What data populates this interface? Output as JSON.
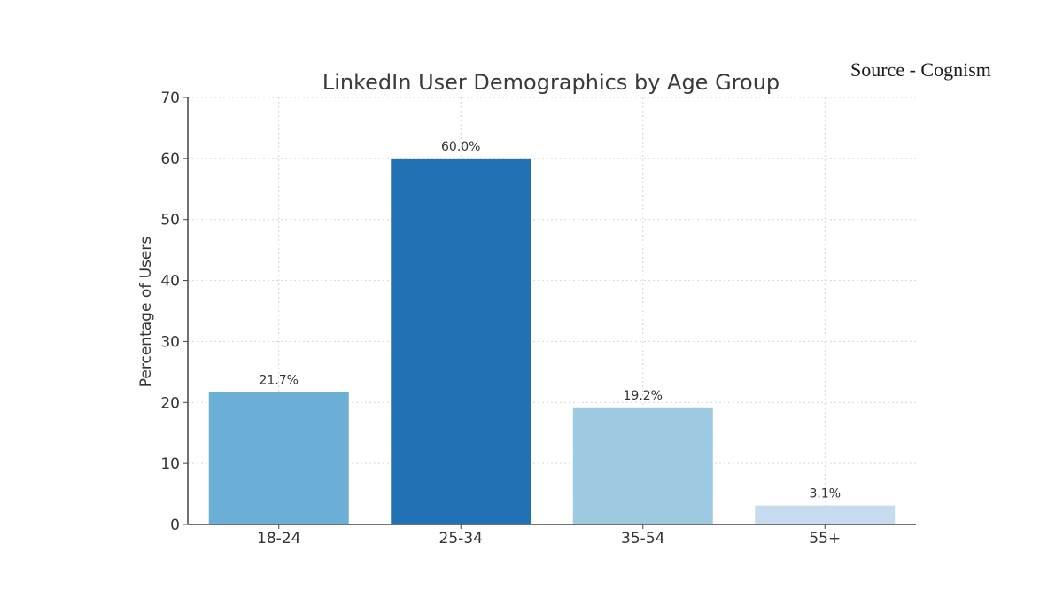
{
  "source_note": "Source - Cognism",
  "chart_data": {
    "type": "bar",
    "title": "LinkedIn User Demographics by Age Group",
    "xlabel": "",
    "ylabel": "Percentage of Users",
    "categories": [
      "18-24",
      "25-34",
      "35-54",
      "55+"
    ],
    "values": [
      21.7,
      60.0,
      19.2,
      3.1
    ],
    "data_labels": [
      "21.7%",
      "60.0%",
      "19.2%",
      "3.1%"
    ],
    "colors": [
      "#6baed6",
      "#2171b5",
      "#9ecae1",
      "#c6dbef"
    ],
    "ylim": [
      0,
      70
    ],
    "yticks": [
      0,
      10,
      20,
      30,
      40,
      50,
      60,
      70
    ],
    "grid": true,
    "legend": "none"
  }
}
